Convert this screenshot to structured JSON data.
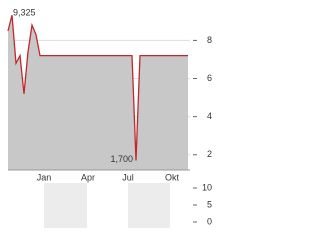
{
  "chart_data": {
    "type": "area",
    "categories": [
      null,
      null,
      null,
      null,
      null,
      null,
      null,
      null,
      null,
      "Jan",
      null,
      null,
      null,
      null,
      null,
      null,
      null,
      null,
      null,
      null,
      "Apr",
      null,
      null,
      null,
      null,
      null,
      null,
      null,
      null,
      null,
      "Jul",
      null,
      null,
      null,
      null,
      null,
      null,
      null,
      null,
      null,
      null,
      "Okt",
      null,
      null,
      null,
      null
    ],
    "values": [
      8.5,
      9.325,
      6.8,
      7.2,
      5.2,
      7.4,
      8.8,
      8.3,
      7.2,
      7.2,
      7.2,
      7.2,
      7.2,
      7.2,
      7.2,
      7.2,
      7.2,
      7.2,
      7.2,
      7.2,
      7.2,
      7.2,
      7.2,
      7.2,
      7.2,
      7.2,
      7.2,
      7.2,
      7.2,
      7.2,
      7.2,
      7.2,
      1.7,
      7.2,
      7.2,
      7.2,
      7.2,
      7.2,
      7.2,
      7.2,
      7.2,
      7.2,
      7.2,
      7.2,
      7.2,
      7.2
    ],
    "color": "#c0272d",
    "fill": "#c8c8c8",
    "ylim": [
      1.2,
      9.7
    ],
    "yticks": [
      2,
      4,
      6,
      8
    ],
    "grid": true,
    "annotations": [
      {
        "value": 9.325,
        "label": "9,325"
      },
      {
        "value": 1.7,
        "label": "1,700"
      }
    ],
    "volume": {
      "ylim": [
        0,
        10
      ],
      "yticks": [
        0,
        5,
        10
      ]
    }
  }
}
